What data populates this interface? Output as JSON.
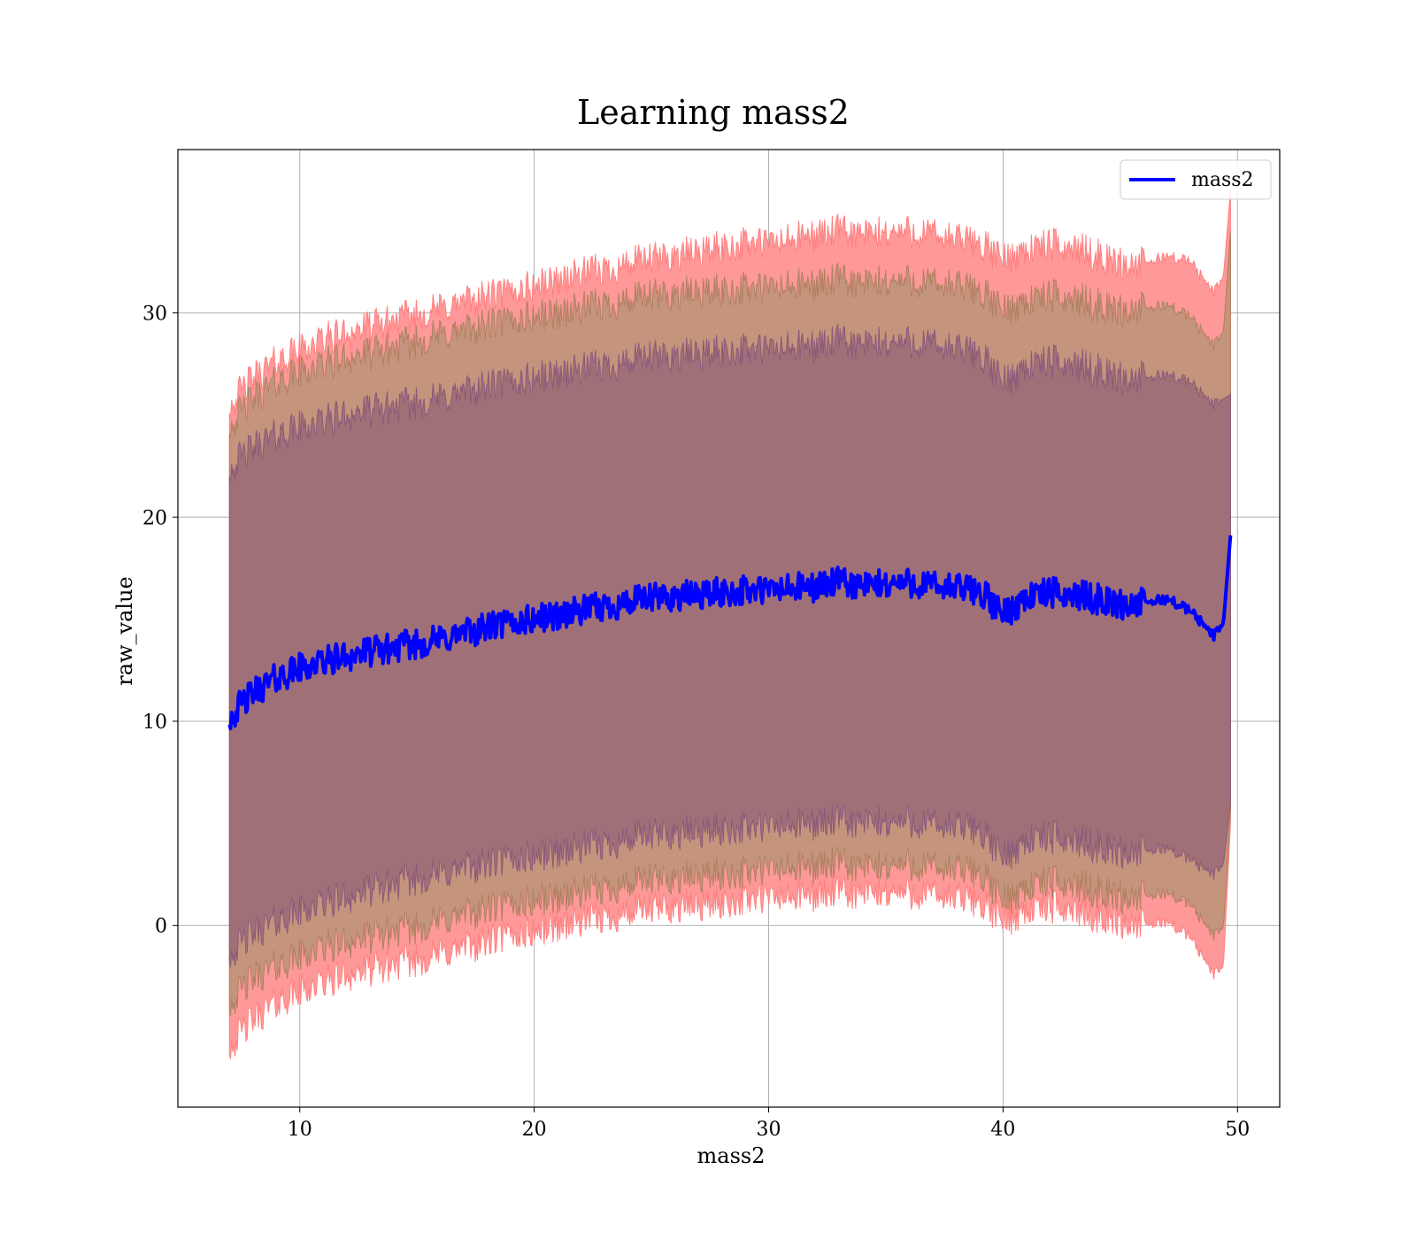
{
  "chart_data": {
    "type": "line",
    "title": "Learning mass2",
    "xlabel": "mass2",
    "ylabel": "raw_value",
    "xlim": [
      4.8,
      51.8
    ],
    "ylim": [
      -8.9,
      38.0
    ],
    "xticks": [
      10,
      20,
      30,
      40,
      50
    ],
    "yticks": [
      0,
      10,
      20,
      30
    ],
    "grid": true,
    "legend_position": "top-right",
    "line_color": "#0000ff",
    "band_color": "#ff0000",
    "series": [
      {
        "name": "mass2",
        "x": [
          7,
          8,
          9,
          10,
          11,
          12,
          13,
          14,
          15,
          16,
          17,
          18,
          19,
          20,
          21,
          22,
          23,
          24,
          25,
          26,
          27,
          28,
          29,
          30,
          31,
          32,
          33,
          34,
          35,
          36,
          37,
          38,
          39,
          40,
          41,
          42,
          43,
          44,
          45,
          46,
          47,
          48,
          49,
          49.4,
          49.7
        ],
        "y": [
          10.2,
          11.4,
          12.1,
          12.6,
          12.9,
          13.2,
          13.4,
          13.6,
          13.8,
          14.0,
          14.3,
          14.6,
          14.8,
          15.0,
          15.2,
          15.4,
          15.6,
          15.8,
          16.0,
          16.1,
          16.2,
          16.3,
          16.4,
          16.4,
          16.5,
          16.6,
          16.8,
          16.6,
          16.7,
          16.8,
          16.6,
          16.5,
          16.4,
          15.2,
          16.1,
          16.3,
          16.2,
          16.0,
          15.7,
          15.8,
          16.0,
          15.4,
          14.2,
          14.8,
          19.1
        ]
      }
    ],
    "bands": [
      {
        "upper": [
          25.5,
          26.8,
          27.6,
          28.2,
          28.7,
          29.0,
          29.3,
          29.6,
          29.9,
          30.2,
          30.5,
          30.8,
          31.0,
          31.3,
          31.6,
          31.9,
          32.1,
          32.4,
          32.6,
          32.8,
          33.0,
          33.2,
          33.4,
          33.4,
          33.6,
          33.8,
          34.0,
          33.8,
          33.9,
          34.0,
          33.8,
          33.6,
          33.4,
          32.6,
          33.1,
          33.3,
          33.2,
          32.8,
          32.4,
          32.4,
          32.8,
          32.5,
          31.0,
          31.8,
          36.0
        ],
        "lower": [
          -5.9,
          -4.6,
          -3.8,
          -3.2,
          -2.8,
          -2.4,
          -2.2,
          -1.9,
          -1.7,
          -1.4,
          -1.1,
          -0.8,
          -0.5,
          -0.3,
          0.0,
          0.2,
          0.4,
          0.6,
          0.8,
          0.9,
          1.0,
          1.1,
          1.3,
          1.3,
          1.4,
          1.5,
          1.6,
          1.5,
          1.6,
          1.6,
          1.5,
          1.3,
          1.2,
          0.2,
          0.8,
          0.9,
          0.8,
          0.5,
          0.2,
          0.0,
          0.2,
          -0.6,
          -2.4,
          -2.0,
          5.0
        ]
      },
      {
        "upper": [
          24.5,
          25.8,
          26.6,
          27.1,
          27.5,
          27.8,
          28.0,
          28.3,
          28.6,
          28.9,
          29.1,
          29.4,
          29.6,
          29.8,
          30.0,
          30.2,
          30.4,
          30.6,
          30.8,
          30.9,
          31.0,
          31.1,
          31.2,
          31.2,
          31.3,
          31.4,
          31.6,
          31.4,
          31.5,
          31.6,
          31.4,
          31.3,
          31.1,
          30.1,
          30.6,
          30.8,
          30.7,
          30.4,
          30.1,
          30.2,
          30.4,
          29.8,
          28.4,
          29.1,
          34.0
        ],
        "lower": [
          -3.8,
          -2.6,
          -2.0,
          -1.5,
          -1.1,
          -0.8,
          -0.6,
          -0.3,
          -0.1,
          0.2,
          0.5,
          0.8,
          1.0,
          1.2,
          1.4,
          1.6,
          1.8,
          2.0,
          2.2,
          2.3,
          2.4,
          2.5,
          2.6,
          2.7,
          2.8,
          2.9,
          3.0,
          2.8,
          2.9,
          3.0,
          2.8,
          2.7,
          2.6,
          1.2,
          1.9,
          2.1,
          2.0,
          1.7,
          1.4,
          1.4,
          1.6,
          1.0,
          -0.5,
          -0.1,
          5.5
        ]
      },
      {
        "upper": [
          22.4,
          23.4,
          24.0,
          24.4,
          24.7,
          25.0,
          25.2,
          25.4,
          25.6,
          25.8,
          26.1,
          26.4,
          26.6,
          26.8,
          27.0,
          27.2,
          27.4,
          27.6,
          27.8,
          27.9,
          28.0,
          28.1,
          28.2,
          28.2,
          28.3,
          28.4,
          28.6,
          28.4,
          28.5,
          28.6,
          28.4,
          28.2,
          28.0,
          26.6,
          27.4,
          27.6,
          27.5,
          27.2,
          26.8,
          26.8,
          27.0,
          26.6,
          25.5,
          25.8,
          26.0
        ],
        "lower": [
          -1.4,
          -0.4,
          0.2,
          0.7,
          1.1,
          1.4,
          1.7,
          2.0,
          2.3,
          2.5,
          2.8,
          3.0,
          3.2,
          3.4,
          3.6,
          3.8,
          4.0,
          4.2,
          4.4,
          4.5,
          4.6,
          4.7,
          4.8,
          4.8,
          4.9,
          5.0,
          5.1,
          5.0,
          5.0,
          5.1,
          4.9,
          4.8,
          4.7,
          3.3,
          4.2,
          4.3,
          4.2,
          3.9,
          3.6,
          3.6,
          3.8,
          3.2,
          2.5,
          3.0,
          6.0
        ]
      }
    ]
  }
}
